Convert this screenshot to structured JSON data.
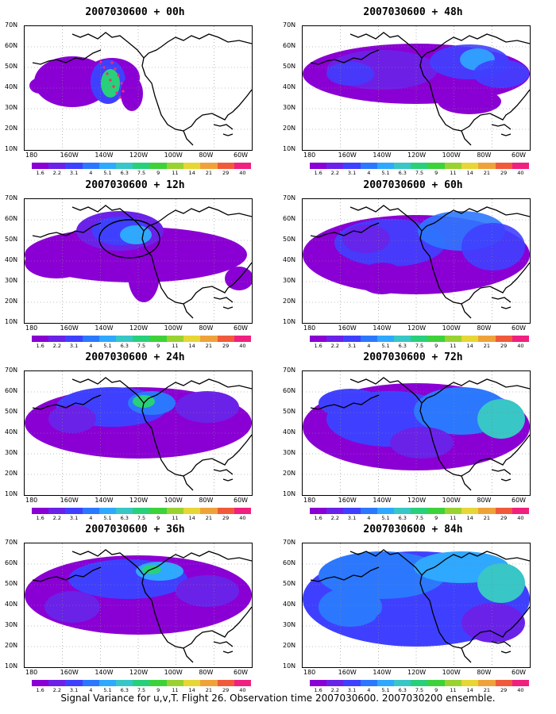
{
  "caption": "Signal Variance for u,v,T. Flight 26. Observation time 2007030600. 2007030200 ensemble.",
  "lat_labels": [
    "70N",
    "60N",
    "50N",
    "40N",
    "30N",
    "20N",
    "10N"
  ],
  "lon_labels": [
    "180",
    "160W",
    "140W",
    "120W",
    "100W",
    "80W",
    "60W"
  ],
  "colorbar_labels": [
    "1.6",
    "2.2",
    "3.1",
    "4",
    "5.1",
    "6.3",
    "7.5",
    "9",
    "11",
    "14",
    "21",
    "29",
    "40"
  ],
  "colorbar_colors": [
    "#8a00d4",
    "#6a22e8",
    "#3f40ff",
    "#2b78ff",
    "#2fa8ff",
    "#38c6c6",
    "#28d07a",
    "#3ed23a",
    "#9ad232",
    "#e6d636",
    "#f0a23a",
    "#f05a3a",
    "#f02080"
  ],
  "panels": [
    {
      "title": "2007030600 + 00h"
    },
    {
      "title": "2007030600 + 48h"
    },
    {
      "title": "2007030600 + 12h"
    },
    {
      "title": "2007030600 + 60h"
    },
    {
      "title": "2007030600 + 24h"
    },
    {
      "title": "2007030600 + 72h"
    },
    {
      "title": "2007030600 + 36h"
    },
    {
      "title": "2007030600 + 84h"
    }
  ]
}
